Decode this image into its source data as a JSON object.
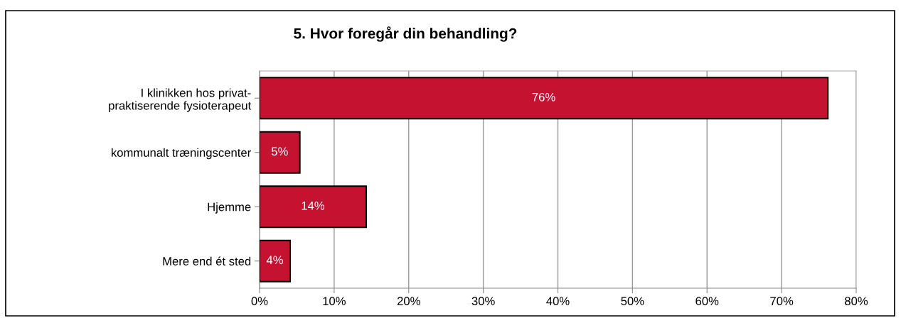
{
  "chart_data": {
    "type": "bar",
    "orientation": "horizontal",
    "title": "5. Hvor foregår din behandling?",
    "categories": [
      "I klinikken hos privat-\npraktiserende fysioterapeut",
      "kommunalt træningscenter",
      "Hjemme",
      "Mere end ét sted"
    ],
    "values": [
      76.2,
      5.4,
      14.3,
      4.1
    ],
    "value_labels": [
      "76%",
      "5%",
      "14%",
      "4%"
    ],
    "color": "#c41230",
    "xlim": [
      0,
      80
    ],
    "xticks": [
      {
        "value": 0,
        "label": "0%"
      },
      {
        "value": 10,
        "label": "10%"
      },
      {
        "value": 20,
        "label": "20%"
      },
      {
        "value": 30,
        "label": "30%"
      },
      {
        "value": 40,
        "label": "40%"
      },
      {
        "value": 50,
        "label": "50%"
      },
      {
        "value": 60,
        "label": "60%"
      },
      {
        "value": 70,
        "label": "70%"
      },
      {
        "value": 80,
        "label": "80%"
      }
    ],
    "grid": "x",
    "legend": false
  }
}
